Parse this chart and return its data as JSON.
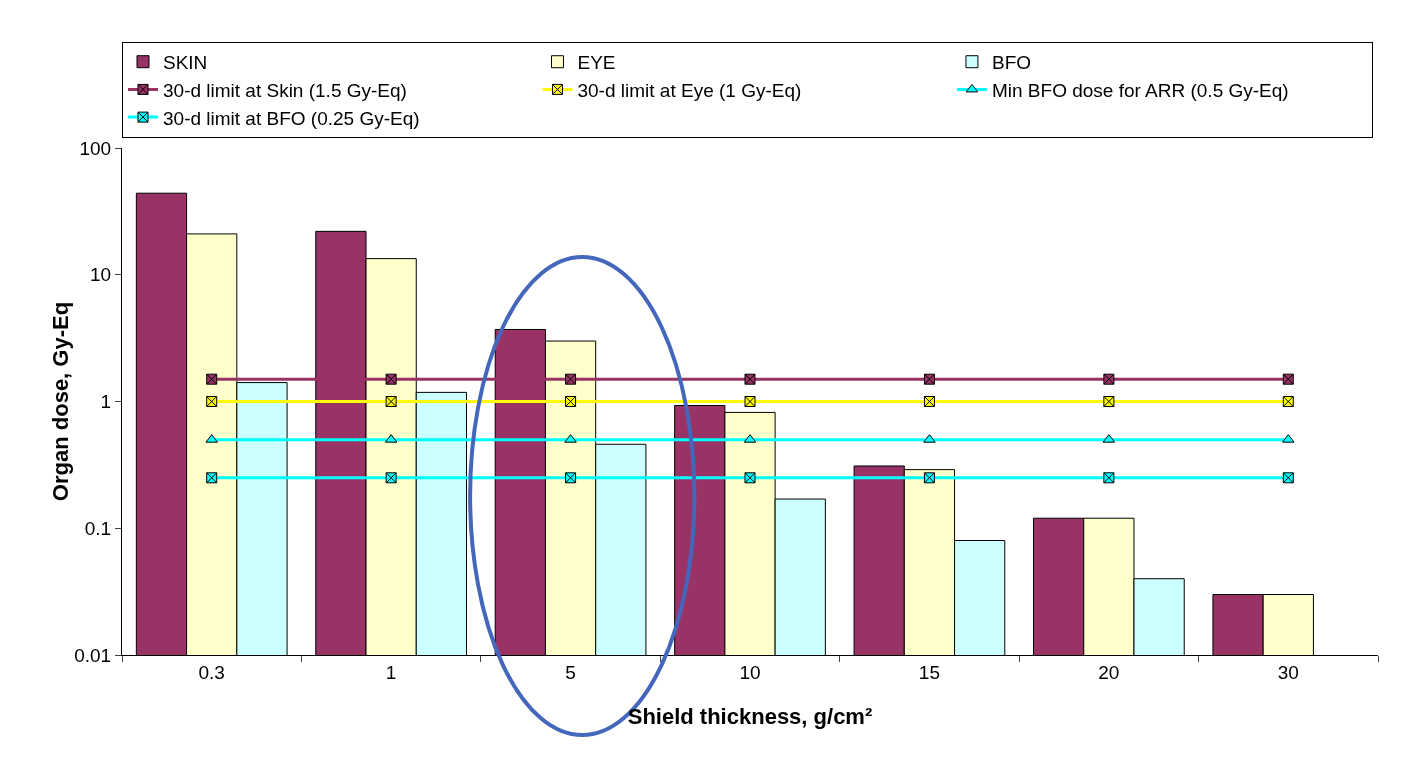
{
  "chart_data": {
    "type": "bar",
    "xlabel": "Shield thickness, g/cm²",
    "ylabel": "Organ dose, Gy-Eq",
    "categories": [
      "0.3",
      "1",
      "5",
      "10",
      "15",
      "20",
      "30"
    ],
    "series": [
      {
        "name": "SKIN",
        "color": "#993366",
        "values": [
          44,
          22,
          3.7,
          0.93,
          0.31,
          0.12,
          0.03
        ]
      },
      {
        "name": "EYE",
        "color": "#ffffcc",
        "values": [
          21,
          13.4,
          3.0,
          0.82,
          0.29,
          0.12,
          0.03
        ]
      },
      {
        "name": "BFO",
        "color": "#ccffff",
        "values": [
          1.41,
          1.18,
          0.46,
          0.17,
          0.08,
          0.04,
          null
        ]
      },
      {
        "name": "30-d limit at Skin (1.5 Gy-Eq)",
        "type": "line",
        "color": "#993366",
        "marker": "cross",
        "values": [
          1.5,
          1.5,
          1.5,
          1.5,
          1.5,
          1.5,
          1.5
        ]
      },
      {
        "name": "30-d limit at Eye (1 Gy-Eq)",
        "type": "line",
        "color": "#ffff00",
        "marker": "cross",
        "values": [
          1,
          1,
          1,
          1,
          1,
          1,
          1
        ]
      },
      {
        "name": "Min BFO dose for ARR (0.5 Gy-Eq)",
        "type": "line",
        "color": "#00ffff",
        "marker": "triangle",
        "values": [
          0.5,
          0.5,
          0.5,
          0.5,
          0.5,
          0.5,
          0.5
        ]
      },
      {
        "name": "30-d limit at BFO (0.25 Gy-Eq)",
        "type": "line",
        "color": "#00ffff",
        "marker": "cross",
        "values": [
          0.25,
          0.25,
          0.25,
          0.25,
          0.25,
          0.25,
          0.25
        ]
      }
    ],
    "log": true,
    "ylim": [
      0.01,
      100
    ],
    "yticks": [
      0.01,
      0.1,
      1,
      10,
      100
    ],
    "grid": false,
    "legend": "top"
  }
}
